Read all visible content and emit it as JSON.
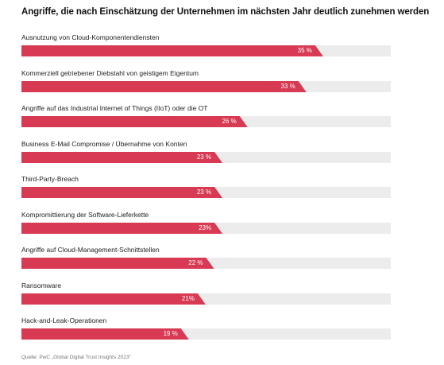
{
  "title": "Angriffe, die nach Einschätzung der Unternehmen im nächsten Jahr deutlich zunehmen werden",
  "source": "Quelle: PwC „Global Digital Trust Insights 2023“",
  "colors": {
    "bar": "#d83a53",
    "track": "#ececec"
  },
  "chart_data": {
    "type": "bar",
    "orientation": "horizontal",
    "xlim": [
      0,
      44
    ],
    "categories": [
      "Ausnutzung von Cloud-Komponentendiensten",
      "Kommerziell getriebener Diebstahl von geistigem Eigentum",
      "Angriffe auf das Industrial Internet of Things (IIoT) oder die OT",
      "Business E-Mail Compromise / Übernahme von Konten",
      "Third-Party-Breach",
      "Kompromittierung der Software-Lieferkette",
      "Angriffe auf Cloud-Management-Schnittstellen",
      "Ransomware",
      "Hack-and-Leak-Operationen"
    ],
    "values": [
      35,
      33,
      26,
      23,
      23,
      23,
      22,
      21,
      19
    ],
    "value_labels": [
      "35 %",
      "33 %",
      "26 %",
      "23 %",
      "23 %",
      "23%",
      "22 %",
      "21%",
      "19 %"
    ]
  }
}
